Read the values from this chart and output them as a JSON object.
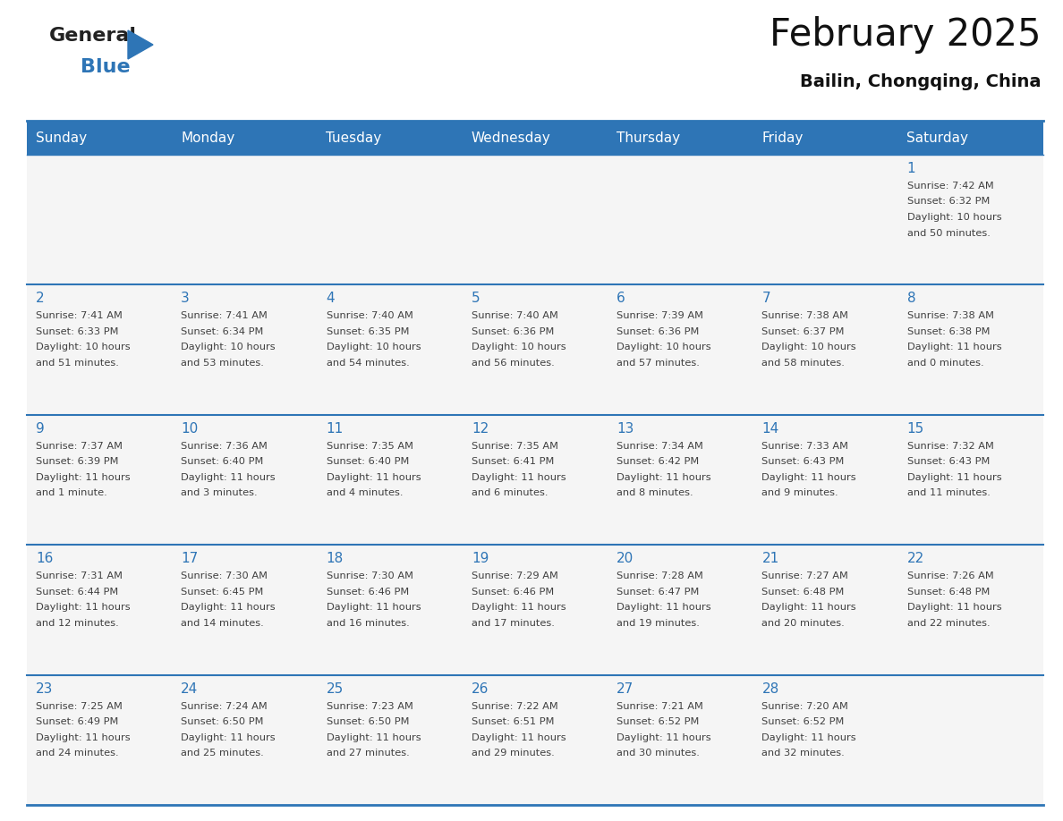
{
  "title": "February 2025",
  "subtitle": "Bailin, Chongqing, China",
  "days_of_week": [
    "Sunday",
    "Monday",
    "Tuesday",
    "Wednesday",
    "Thursday",
    "Friday",
    "Saturday"
  ],
  "header_bg_color": "#2E75B6",
  "header_text_color": "#FFFFFF",
  "day_number_color": "#2E75B6",
  "info_text_color": "#404040",
  "border_color": "#2E75B6",
  "calendar": [
    [
      null,
      null,
      null,
      null,
      null,
      null,
      {
        "day": 1,
        "sunrise": "7:42 AM",
        "sunset": "6:32 PM",
        "daylight_hours": 10,
        "daylight_mins": 50
      }
    ],
    [
      {
        "day": 2,
        "sunrise": "7:41 AM",
        "sunset": "6:33 PM",
        "daylight_hours": 10,
        "daylight_mins": 51
      },
      {
        "day": 3,
        "sunrise": "7:41 AM",
        "sunset": "6:34 PM",
        "daylight_hours": 10,
        "daylight_mins": 53
      },
      {
        "day": 4,
        "sunrise": "7:40 AM",
        "sunset": "6:35 PM",
        "daylight_hours": 10,
        "daylight_mins": 54
      },
      {
        "day": 5,
        "sunrise": "7:40 AM",
        "sunset": "6:36 PM",
        "daylight_hours": 10,
        "daylight_mins": 56
      },
      {
        "day": 6,
        "sunrise": "7:39 AM",
        "sunset": "6:36 PM",
        "daylight_hours": 10,
        "daylight_mins": 57
      },
      {
        "day": 7,
        "sunrise": "7:38 AM",
        "sunset": "6:37 PM",
        "daylight_hours": 10,
        "daylight_mins": 58
      },
      {
        "day": 8,
        "sunrise": "7:38 AM",
        "sunset": "6:38 PM",
        "daylight_hours": 11,
        "daylight_mins": 0
      }
    ],
    [
      {
        "day": 9,
        "sunrise": "7:37 AM",
        "sunset": "6:39 PM",
        "daylight_hours": 11,
        "daylight_mins": 1
      },
      {
        "day": 10,
        "sunrise": "7:36 AM",
        "sunset": "6:40 PM",
        "daylight_hours": 11,
        "daylight_mins": 3
      },
      {
        "day": 11,
        "sunrise": "7:35 AM",
        "sunset": "6:40 PM",
        "daylight_hours": 11,
        "daylight_mins": 4
      },
      {
        "day": 12,
        "sunrise": "7:35 AM",
        "sunset": "6:41 PM",
        "daylight_hours": 11,
        "daylight_mins": 6
      },
      {
        "day": 13,
        "sunrise": "7:34 AM",
        "sunset": "6:42 PM",
        "daylight_hours": 11,
        "daylight_mins": 8
      },
      {
        "day": 14,
        "sunrise": "7:33 AM",
        "sunset": "6:43 PM",
        "daylight_hours": 11,
        "daylight_mins": 9
      },
      {
        "day": 15,
        "sunrise": "7:32 AM",
        "sunset": "6:43 PM",
        "daylight_hours": 11,
        "daylight_mins": 11
      }
    ],
    [
      {
        "day": 16,
        "sunrise": "7:31 AM",
        "sunset": "6:44 PM",
        "daylight_hours": 11,
        "daylight_mins": 12
      },
      {
        "day": 17,
        "sunrise": "7:30 AM",
        "sunset": "6:45 PM",
        "daylight_hours": 11,
        "daylight_mins": 14
      },
      {
        "day": 18,
        "sunrise": "7:30 AM",
        "sunset": "6:46 PM",
        "daylight_hours": 11,
        "daylight_mins": 16
      },
      {
        "day": 19,
        "sunrise": "7:29 AM",
        "sunset": "6:46 PM",
        "daylight_hours": 11,
        "daylight_mins": 17
      },
      {
        "day": 20,
        "sunrise": "7:28 AM",
        "sunset": "6:47 PM",
        "daylight_hours": 11,
        "daylight_mins": 19
      },
      {
        "day": 21,
        "sunrise": "7:27 AM",
        "sunset": "6:48 PM",
        "daylight_hours": 11,
        "daylight_mins": 20
      },
      {
        "day": 22,
        "sunrise": "7:26 AM",
        "sunset": "6:48 PM",
        "daylight_hours": 11,
        "daylight_mins": 22
      }
    ],
    [
      {
        "day": 23,
        "sunrise": "7:25 AM",
        "sunset": "6:49 PM",
        "daylight_hours": 11,
        "daylight_mins": 24
      },
      {
        "day": 24,
        "sunrise": "7:24 AM",
        "sunset": "6:50 PM",
        "daylight_hours": 11,
        "daylight_mins": 25
      },
      {
        "day": 25,
        "sunrise": "7:23 AM",
        "sunset": "6:50 PM",
        "daylight_hours": 11,
        "daylight_mins": 27
      },
      {
        "day": 26,
        "sunrise": "7:22 AM",
        "sunset": "6:51 PM",
        "daylight_hours": 11,
        "daylight_mins": 29
      },
      {
        "day": 27,
        "sunrise": "7:21 AM",
        "sunset": "6:52 PM",
        "daylight_hours": 11,
        "daylight_mins": 30
      },
      {
        "day": 28,
        "sunrise": "7:20 AM",
        "sunset": "6:52 PM",
        "daylight_hours": 11,
        "daylight_mins": 32
      },
      null
    ]
  ],
  "logo_general_color": "#222222",
  "logo_blue_color": "#2E75B6",
  "triangle_color": "#2E75B6"
}
